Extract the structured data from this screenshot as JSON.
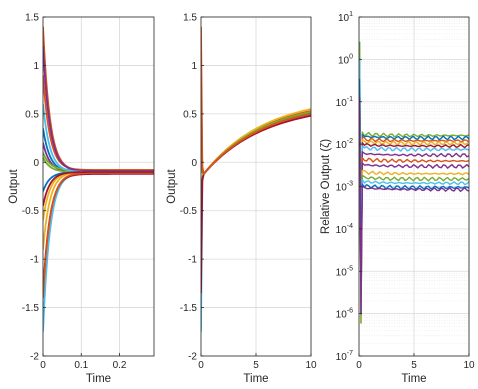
{
  "chart_data": [
    {
      "type": "line",
      "xlabel": "Time",
      "ylabel": "Output",
      "xlim": [
        0,
        0.29
      ],
      "ylim": [
        -2,
        1.5
      ],
      "xticks": [
        0,
        0.1,
        0.2
      ],
      "xtick_labels": [
        "0",
        "0.1",
        "0.2"
      ],
      "yticks": [
        -2,
        -1.5,
        -1,
        -0.5,
        0,
        0.5,
        1,
        1.5
      ],
      "ytick_labels": [
        "-2",
        "-1.5",
        "-1",
        "-0.5",
        "0",
        "0.5",
        "1",
        "1.5"
      ],
      "grid": true,
      "series_note": "",
      "series": [
        {
          "color": "#0072BD",
          "initial": 0.35,
          "final": -0.1
        },
        {
          "color": "#D95319",
          "initial": 1.4,
          "final": -0.09
        },
        {
          "color": "#EDB120",
          "initial": -0.6,
          "final": -0.1
        },
        {
          "color": "#7E2F8E",
          "initial": 0.2,
          "final": -0.1
        },
        {
          "color": "#77AC30",
          "initial": 0.1,
          "final": -0.08
        },
        {
          "color": "#4DBEEE",
          "initial": -1.75,
          "final": -0.11
        },
        {
          "color": "#A2142F",
          "initial": -1.35,
          "final": -0.12
        },
        {
          "color": "#0072BD",
          "initial": -0.3,
          "final": -0.1
        },
        {
          "color": "#D95319",
          "initial": 0.9,
          "final": -0.08
        },
        {
          "color": "#EDB120",
          "initial": -0.9,
          "final": -0.1
        },
        {
          "color": "#7E2F8E",
          "initial": 1.2,
          "final": -0.09
        },
        {
          "color": "#77AC30",
          "initial": 0.05,
          "final": -0.1
        },
        {
          "color": "#D95319",
          "initial": -1.4,
          "final": -0.11
        },
        {
          "color": "#4DBEEE",
          "initial": 0.6,
          "final": -0.1
        },
        {
          "color": "#A2142F",
          "initial": -0.45,
          "final": -0.1
        }
      ]
    },
    {
      "type": "line",
      "xlabel": "Time",
      "ylabel": "Output",
      "xlim": [
        0,
        10
      ],
      "ylim": [
        -2,
        1.5
      ],
      "xticks": [
        0,
        5,
        10
      ],
      "xtick_labels": [
        "0",
        "5",
        "10"
      ],
      "yticks": [
        -2,
        -1.5,
        -1,
        -0.5,
        0,
        0.5,
        1,
        1.5
      ],
      "ytick_labels": [
        "-2",
        "-1.5",
        "-1",
        "-0.5",
        "0",
        "0.5",
        "1",
        "1.5"
      ],
      "grid": true,
      "series": [
        {
          "color": "#0072BD",
          "initial": 0.35,
          "final": 0.51
        },
        {
          "color": "#D95319",
          "initial": 1.4,
          "final": 0.53
        },
        {
          "color": "#EDB120",
          "initial": -0.6,
          "final": 0.55
        },
        {
          "color": "#7E2F8E",
          "initial": 0.2,
          "final": 0.5
        },
        {
          "color": "#77AC30",
          "initial": 0.1,
          "final": 0.52
        },
        {
          "color": "#4DBEEE",
          "initial": -1.75,
          "final": 0.49
        },
        {
          "color": "#A2142F",
          "initial": -1.35,
          "final": 0.48
        },
        {
          "color": "#D95319",
          "initial": 0.9,
          "final": 0.5
        }
      ]
    },
    {
      "type": "line",
      "xlabel": "Time",
      "ylabel": "Relative Output (ζ)",
      "xlim": [
        0,
        10
      ],
      "ylim": [
        1e-07,
        10
      ],
      "yscale": "log",
      "xticks": [
        0,
        5,
        10
      ],
      "xtick_labels": [
        "0",
        "5",
        "10"
      ],
      "ytick_exponents": [
        1,
        0,
        -1,
        -2,
        -3,
        -4,
        -5,
        -6,
        -7
      ],
      "ytick_base": "10",
      "grid": true,
      "minor_grid": true,
      "series": [
        {
          "color": "#77AC30",
          "final": 0.016
        },
        {
          "color": "#0072BD",
          "final": 0.014
        },
        {
          "color": "#D95319",
          "final": 0.012
        },
        {
          "color": "#EDB120",
          "final": 0.0105
        },
        {
          "color": "#A2142F",
          "final": 0.009
        },
        {
          "color": "#4DBEEE",
          "final": 0.0075
        },
        {
          "color": "#7E2F8E",
          "final": 0.0055
        },
        {
          "color": "#D95319",
          "final": 0.004
        },
        {
          "color": "#7E2F8E",
          "final": 0.003
        },
        {
          "color": "#EDB120",
          "final": 0.002
        },
        {
          "color": "#77AC30",
          "final": 0.0015
        },
        {
          "color": "#4DBEEE",
          "final": 0.0012
        },
        {
          "color": "#0072BD",
          "final": 0.00095
        },
        {
          "color": "#7E2F8E",
          "final": 0.00085
        }
      ]
    }
  ]
}
